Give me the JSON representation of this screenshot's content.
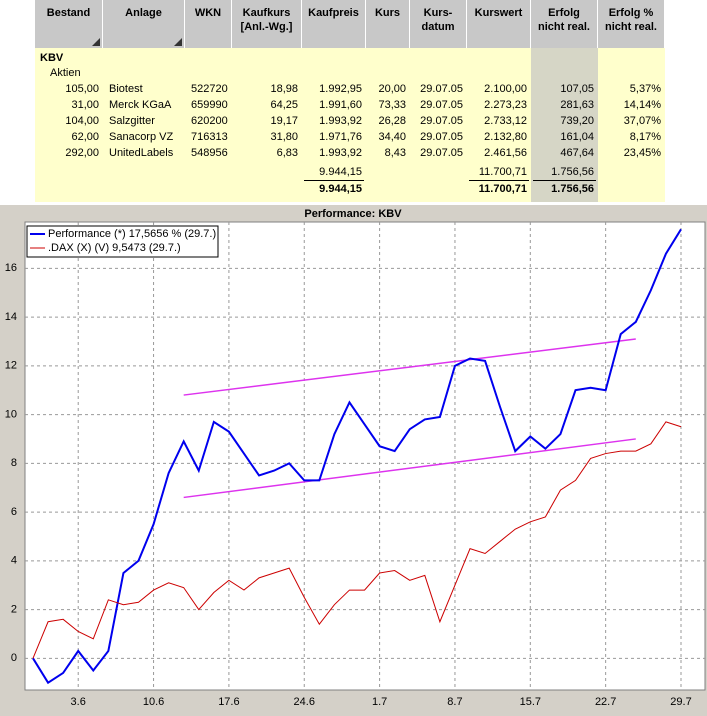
{
  "table": {
    "columns": [
      [
        "Bestand"
      ],
      [
        "Anlage"
      ],
      [
        "WKN"
      ],
      [
        "Kaufkurs",
        "[Anl.-Wg.]"
      ],
      [
        "Kaufpreis"
      ],
      [
        "Kurs"
      ],
      [
        "Kurs-",
        "datum"
      ],
      [
        "Kurswert"
      ],
      [
        "Erfolg",
        "nicht real."
      ],
      [
        "Erfolg %",
        "nicht real."
      ]
    ],
    "group": "KBV",
    "subgroup": "Aktien",
    "rows": [
      [
        "105,00",
        "Biotest",
        "522720",
        "18,98",
        "1.992,95",
        "20,00",
        "29.07.05",
        "2.100,00",
        "107,05",
        "5,37%"
      ],
      [
        "31,00",
        "Merck KGaA",
        "659990",
        "64,25",
        "1.991,60",
        "73,33",
        "29.07.05",
        "2.273,23",
        "281,63",
        "14,14%"
      ],
      [
        "104,00",
        "Salzgitter",
        "620200",
        "19,17",
        "1.993,92",
        "26,28",
        "29.07.05",
        "2.733,12",
        "739,20",
        "37,07%"
      ],
      [
        "62,00",
        "Sanacorp VZ",
        "716313",
        "31,80",
        "1.971,76",
        "34,40",
        "29.07.05",
        "2.132,80",
        "161,04",
        "8,17%"
      ],
      [
        "292,00",
        "UnitedLabels",
        "548956",
        "6,83",
        "1.993,92",
        "8,43",
        "29.07.05",
        "2.461,56",
        "467,64",
        "23,45%"
      ]
    ],
    "subtotal": [
      null,
      null,
      null,
      null,
      "9.944,15",
      null,
      null,
      "11.700,71",
      "1.756,56",
      null
    ],
    "total": [
      null,
      null,
      null,
      null,
      "9.944,15",
      null,
      null,
      "11.700,71",
      "1.756,56",
      null
    ]
  },
  "chart_data": {
    "type": "line",
    "title": "Performance: KBV",
    "categories": [
      null,
      null,
      null,
      "3.6",
      null,
      null,
      null,
      null,
      "10.6",
      null,
      null,
      null,
      null,
      "17.6",
      null,
      null,
      null,
      null,
      "24.6",
      null,
      null,
      null,
      null,
      "1.7",
      null,
      null,
      null,
      null,
      "8.7",
      null,
      null,
      null,
      null,
      "15.7",
      null,
      null,
      null,
      null,
      "22.7",
      null,
      null,
      null,
      null,
      "29.7"
    ],
    "series": [
      {
        "name": "Performance (*) 17,5656 % (29.7.)",
        "color": "#0000ee",
        "width": 2,
        "values": [
          0,
          -1.0,
          -0.6,
          0.3,
          -0.5,
          0.3,
          3.5,
          4.0,
          5.5,
          7.6,
          8.9,
          7.7,
          9.7,
          9.3,
          8.4,
          7.5,
          7.7,
          8.0,
          7.3,
          7.3,
          9.2,
          10.5,
          9.6,
          8.7,
          8.5,
          9.4,
          9.8,
          9.9,
          12.0,
          12.3,
          12.2,
          10.3,
          8.5,
          9.1,
          8.6,
          9.2,
          11.0,
          11.1,
          11.0,
          13.3,
          13.8,
          15.1,
          16.6,
          17.6
        ]
      },
      {
        "name": ".DAX (X) (V) 9,5473 (29.7.)",
        "color": "#cc0000",
        "width": 1,
        "values": [
          0,
          1.5,
          1.6,
          1.1,
          0.8,
          2.4,
          2.2,
          2.3,
          2.8,
          3.1,
          2.9,
          2.0,
          2.7,
          3.2,
          2.8,
          3.3,
          3.5,
          3.7,
          2.5,
          1.4,
          2.2,
          2.8,
          2.8,
          3.5,
          3.6,
          3.2,
          3.4,
          1.5,
          3.0,
          4.5,
          4.3,
          4.8,
          5.3,
          5.6,
          5.8,
          6.9,
          7.3,
          8.2,
          8.4,
          8.5,
          8.5,
          8.8,
          9.7,
          9.5
        ]
      }
    ],
    "trend_lines": [
      {
        "color": "#dd33ee",
        "start_index": 10,
        "end_index": 40,
        "values": [
          10.8,
          13.1
        ]
      },
      {
        "color": "#dd33ee",
        "start_index": 10,
        "end_index": 40,
        "values": [
          6.6,
          9.0
        ]
      }
    ],
    "ylim": [
      -1.3,
      17.9
    ],
    "yticks": [
      0,
      2,
      4,
      6,
      8,
      10,
      12,
      14,
      16
    ],
    "grid": true,
    "legend": "top-left"
  }
}
